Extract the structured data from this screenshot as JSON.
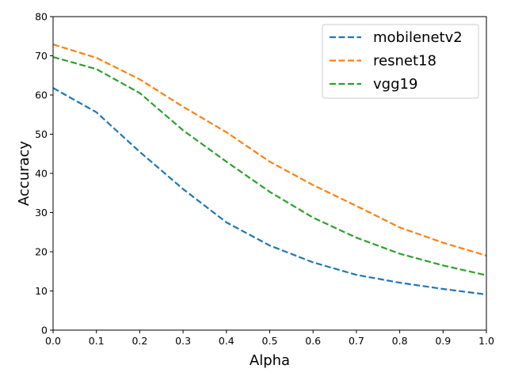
{
  "chart_data": {
    "type": "line",
    "xlabel": "Alpha",
    "ylabel": "Accuracy",
    "xlim": [
      0.0,
      1.0
    ],
    "ylim": [
      0,
      80
    ],
    "x_ticks": [
      "0.0",
      "0.1",
      "0.2",
      "0.3",
      "0.4",
      "0.5",
      "0.6",
      "0.7",
      "0.8",
      "0.9",
      "1.0"
    ],
    "y_ticks": [
      "0",
      "10",
      "20",
      "30",
      "40",
      "50",
      "60",
      "70",
      "80"
    ],
    "grid": false,
    "legend_position": "top-right",
    "x": [
      0.0,
      0.1,
      0.2,
      0.3,
      0.4,
      0.5,
      0.6,
      0.7,
      0.8,
      0.9,
      1.0
    ],
    "series": [
      {
        "name": "mobilenetv2",
        "color": "#1f77b4",
        "line_style": "dashed",
        "values": [
          61.8,
          55.6,
          45.5,
          36.0,
          27.5,
          21.6,
          17.3,
          14.1,
          12.1,
          10.5,
          9.1
        ]
      },
      {
        "name": "resnet18",
        "color": "#ff7f0e",
        "line_style": "dashed",
        "values": [
          72.9,
          69.5,
          64.0,
          57.0,
          50.5,
          43.0,
          37.0,
          31.7,
          26.2,
          22.3,
          19.0
        ]
      },
      {
        "name": "vgg19",
        "color": "#2ca02c",
        "line_style": "dashed",
        "values": [
          69.7,
          66.6,
          60.5,
          51.0,
          43.0,
          35.3,
          28.7,
          23.6,
          19.5,
          16.5,
          14.0
        ]
      }
    ]
  }
}
